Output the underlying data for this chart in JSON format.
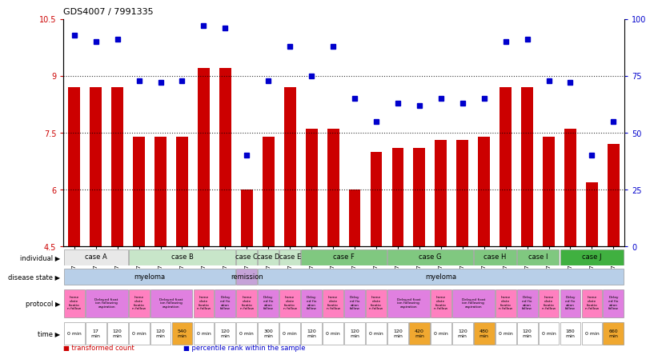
{
  "title": "GDS4007 / 7991335",
  "bar_color": "#cc0000",
  "dot_color": "#0000cc",
  "ylim_left": [
    4.5,
    10.5
  ],
  "ylim_right": [
    0,
    100
  ],
  "yticks_left": [
    4.5,
    6.0,
    7.5,
    9.0,
    10.5
  ],
  "yticks_right": [
    0,
    25,
    50,
    75,
    100
  ],
  "samples": [
    "GSM879509",
    "GSM879510",
    "GSM879511",
    "GSM879512",
    "GSM879513",
    "GSM879514",
    "GSM879517",
    "GSM879518",
    "GSM879519",
    "GSM879520",
    "GSM879525",
    "GSM879526",
    "GSM879527",
    "GSM879528",
    "GSM879529",
    "GSM879530",
    "GSM879531",
    "GSM879532",
    "GSM879533",
    "GSM879534",
    "GSM879535",
    "GSM879536",
    "GSM879537",
    "GSM879538",
    "GSM879539",
    "GSM879540"
  ],
  "bar_values": [
    8.7,
    8.7,
    8.7,
    7.4,
    7.4,
    7.4,
    9.2,
    9.2,
    6.0,
    7.4,
    8.7,
    7.6,
    7.6,
    6.0,
    7.0,
    7.1,
    7.1,
    7.3,
    7.3,
    7.4,
    8.7,
    8.7,
    7.4,
    7.6,
    6.2,
    7.2
  ],
  "dot_values": [
    93,
    90,
    91,
    73,
    72,
    73,
    97,
    96,
    40,
    73,
    88,
    75,
    88,
    65,
    55,
    63,
    62,
    65,
    63,
    65,
    90,
    91,
    73,
    72,
    40,
    55
  ],
  "individual_groups": [
    {
      "label": "case A",
      "start": 0,
      "end": 3,
      "color": "#e8e8e8"
    },
    {
      "label": "case B",
      "start": 3,
      "end": 8,
      "color": "#c8e6c9"
    },
    {
      "label": "case C",
      "start": 8,
      "end": 9,
      "color": "#c8e6c9"
    },
    {
      "label": "case D",
      "start": 9,
      "end": 10,
      "color": "#c8e6c9"
    },
    {
      "label": "case E",
      "start": 10,
      "end": 11,
      "color": "#c8e6c9"
    },
    {
      "label": "case F",
      "start": 11,
      "end": 15,
      "color": "#80c880"
    },
    {
      "label": "case G",
      "start": 15,
      "end": 19,
      "color": "#80c880"
    },
    {
      "label": "case H",
      "start": 19,
      "end": 21,
      "color": "#80c880"
    },
    {
      "label": "case I",
      "start": 21,
      "end": 23,
      "color": "#80c880"
    },
    {
      "label": "case J",
      "start": 23,
      "end": 26,
      "color": "#40b040"
    }
  ],
  "disease_groups": [
    {
      "label": "myeloma",
      "start": 0,
      "end": 8,
      "color": "#b8cfe8"
    },
    {
      "label": "remission",
      "start": 8,
      "end": 9,
      "color": "#c5a3d8"
    },
    {
      "label": "myeloma",
      "start": 9,
      "end": 26,
      "color": "#b8cfe8"
    }
  ],
  "protocol_entries": [
    {
      "label": "Imme\ndiate\nfixatio\nn follow",
      "start": 0,
      "end": 1,
      "color": "#ff80c0"
    },
    {
      "label": "Delayed fixat\nion following\naspiration",
      "start": 1,
      "end": 3,
      "color": "#e080e0"
    },
    {
      "label": "Imme\ndiate\nfixatio\nn follow",
      "start": 3,
      "end": 4,
      "color": "#ff80c0"
    },
    {
      "label": "Delayed fixat\nion following\naspiration",
      "start": 4,
      "end": 6,
      "color": "#e080e0"
    },
    {
      "label": "Imme\ndiate\nfixatio\nn follow",
      "start": 6,
      "end": 7,
      "color": "#ff80c0"
    },
    {
      "label": "Delay\ned fix\nation\nfollow",
      "start": 7,
      "end": 8,
      "color": "#e080e0"
    },
    {
      "label": "Imme\ndiate\nfixatio\nn follow",
      "start": 8,
      "end": 9,
      "color": "#ff80c0"
    },
    {
      "label": "Delay\ned fix\nation\nfollow",
      "start": 9,
      "end": 10,
      "color": "#e080e0"
    },
    {
      "label": "Imme\ndiate\nfixatio\nn follow",
      "start": 10,
      "end": 11,
      "color": "#ff80c0"
    },
    {
      "label": "Delay\ned fix\nation\nfollow",
      "start": 11,
      "end": 12,
      "color": "#e080e0"
    },
    {
      "label": "Imme\ndiate\nfixatio\nn follow",
      "start": 12,
      "end": 13,
      "color": "#ff80c0"
    },
    {
      "label": "Delay\ned fix\nation\nfollow",
      "start": 13,
      "end": 14,
      "color": "#e080e0"
    },
    {
      "label": "Imme\ndiate\nfixatio\nn follow",
      "start": 14,
      "end": 15,
      "color": "#ff80c0"
    },
    {
      "label": "Delayed fixat\nion following\naspiration",
      "start": 15,
      "end": 17,
      "color": "#e080e0"
    },
    {
      "label": "Imme\ndiate\nfixatio\nn follow",
      "start": 17,
      "end": 18,
      "color": "#ff80c0"
    },
    {
      "label": "Delayed fixat\nion following\naspiration",
      "start": 18,
      "end": 20,
      "color": "#e080e0"
    },
    {
      "label": "Imme\ndiate\nfixatio\nn follow",
      "start": 20,
      "end": 21,
      "color": "#ff80c0"
    },
    {
      "label": "Delay\ned fix\nation\nfollow",
      "start": 21,
      "end": 22,
      "color": "#e080e0"
    },
    {
      "label": "Imme\ndiate\nfixatio\nn follow",
      "start": 22,
      "end": 23,
      "color": "#ff80c0"
    },
    {
      "label": "Delay\ned fix\nation\nfollow",
      "start": 23,
      "end": 24,
      "color": "#e080e0"
    },
    {
      "label": "Imme\ndiate\nfixatio\nn follow",
      "start": 24,
      "end": 25,
      "color": "#ff80c0"
    },
    {
      "label": "Delay\ned fix\nation\nfollow",
      "start": 25,
      "end": 26,
      "color": "#e080e0"
    }
  ],
  "time_entries": [
    {
      "label": "0 min",
      "start": 0,
      "end": 1,
      "color": "#ffffff"
    },
    {
      "label": "17\nmin",
      "start": 1,
      "end": 2,
      "color": "#ffffff"
    },
    {
      "label": "120\nmin",
      "start": 2,
      "end": 3,
      "color": "#ffffff"
    },
    {
      "label": "0 min",
      "start": 3,
      "end": 4,
      "color": "#ffffff"
    },
    {
      "label": "120\nmin",
      "start": 4,
      "end": 5,
      "color": "#ffffff"
    },
    {
      "label": "540\nmin",
      "start": 5,
      "end": 6,
      "color": "#f0a830"
    },
    {
      "label": "0 min",
      "start": 6,
      "end": 7,
      "color": "#ffffff"
    },
    {
      "label": "120\nmin",
      "start": 7,
      "end": 8,
      "color": "#ffffff"
    },
    {
      "label": "0 min",
      "start": 8,
      "end": 9,
      "color": "#ffffff"
    },
    {
      "label": "300\nmin",
      "start": 9,
      "end": 10,
      "color": "#ffffff"
    },
    {
      "label": "0 min",
      "start": 10,
      "end": 11,
      "color": "#ffffff"
    },
    {
      "label": "120\nmin",
      "start": 11,
      "end": 12,
      "color": "#ffffff"
    },
    {
      "label": "0 min",
      "start": 12,
      "end": 13,
      "color": "#ffffff"
    },
    {
      "label": "120\nmin",
      "start": 13,
      "end": 14,
      "color": "#ffffff"
    },
    {
      "label": "0 min",
      "start": 14,
      "end": 15,
      "color": "#ffffff"
    },
    {
      "label": "120\nmin",
      "start": 15,
      "end": 16,
      "color": "#ffffff"
    },
    {
      "label": "420\nmin",
      "start": 16,
      "end": 17,
      "color": "#f0a830"
    },
    {
      "label": "0 min",
      "start": 17,
      "end": 18,
      "color": "#ffffff"
    },
    {
      "label": "120\nmin",
      "start": 18,
      "end": 19,
      "color": "#ffffff"
    },
    {
      "label": "480\nmin",
      "start": 19,
      "end": 20,
      "color": "#f0a830"
    },
    {
      "label": "0 min",
      "start": 20,
      "end": 21,
      "color": "#ffffff"
    },
    {
      "label": "120\nmin",
      "start": 21,
      "end": 22,
      "color": "#ffffff"
    },
    {
      "label": "0 min",
      "start": 22,
      "end": 23,
      "color": "#ffffff"
    },
    {
      "label": "180\nmin",
      "start": 23,
      "end": 24,
      "color": "#ffffff"
    },
    {
      "label": "0 min",
      "start": 24,
      "end": 25,
      "color": "#ffffff"
    },
    {
      "label": "660\nmin",
      "start": 25,
      "end": 26,
      "color": "#f0a830"
    }
  ],
  "legend_bar_label": "transformed count",
  "legend_dot_label": "percentile rank within the sample",
  "row_labels": [
    "individual",
    "disease state",
    "protocol",
    "time"
  ]
}
